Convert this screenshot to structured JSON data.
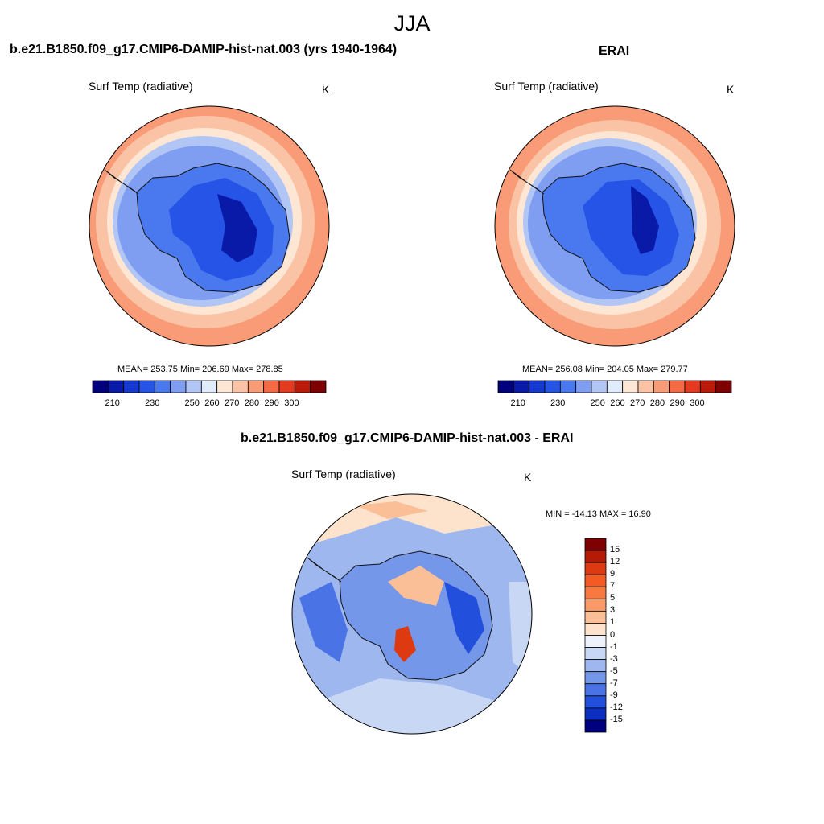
{
  "figure": {
    "season": "JJA"
  },
  "panels": [
    {
      "title": "b.e21.B1850.f09_g17.CMIP6-DAMIP-hist-nat.003 (yrs 1940-1964)",
      "variable": "Surf Temp (radiative)",
      "units": "K",
      "stats": "MEAN= 253.75  Min= 206.69  Max= 278.85",
      "warm_offset": [
        0,
        0
      ]
    },
    {
      "title": "ERAI",
      "variable": "Surf Temp (radiative)",
      "units": "K",
      "stats": "MEAN= 256.08  Min= 204.05  Max= 279.77",
      "warm_offset": [
        0,
        0
      ]
    },
    {
      "title": "b.e21.B1850.f09_g17.CMIP6-DAMIP-hist-nat.003 - ERAI",
      "variable": "Surf Temp (radiative)",
      "units": "K",
      "stats": "MIN = -14.13 MAX =  16.90"
    }
  ],
  "colorbars": {
    "absolute": {
      "orientation": "horizontal",
      "colors": [
        "#00007f",
        "#0a1aa8",
        "#1438d0",
        "#2554e6",
        "#4a78ee",
        "#7f9ef2",
        "#b2c6f6",
        "#e0ebfb",
        "#fde6d4",
        "#fbc3a5",
        "#f89b76",
        "#f46a45",
        "#e33a20",
        "#bb1a0a",
        "#7f0000"
      ],
      "tick_labels": [
        "210",
        "230",
        "250",
        "260",
        "270",
        "280",
        "290",
        "300"
      ]
    },
    "difference": {
      "orientation": "vertical",
      "colors": [
        "#7f0000",
        "#b51a05",
        "#dd3a12",
        "#f45a24",
        "#f8793f",
        "#fa9a68",
        "#fbbf98",
        "#fde3cc",
        "#eef3fb",
        "#c8d7f3",
        "#9eb8ef",
        "#7497ea",
        "#4a73e6",
        "#2250dc",
        "#0c2fc0",
        "#00007f"
      ],
      "tick_labels": [
        "15",
        "12",
        "9",
        "7",
        "5",
        "3",
        "1",
        "0",
        "-1",
        "-3",
        "-5",
        "-7",
        "-9",
        "-12",
        "-15"
      ]
    }
  }
}
